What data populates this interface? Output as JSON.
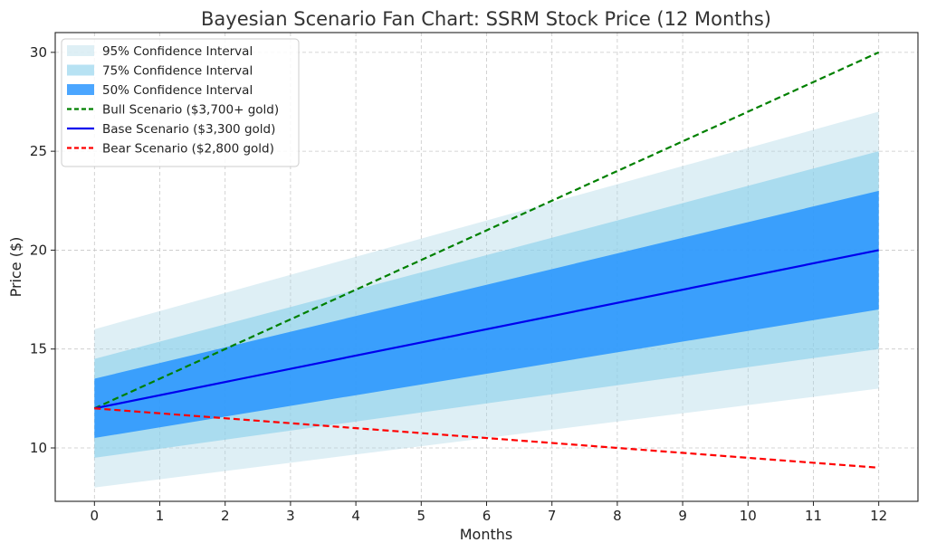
{
  "chart_data": {
    "type": "line",
    "title": "Bayesian Scenario Fan Chart: SSRM Stock Price (12 Months)",
    "xlabel": "Months",
    "ylabel": "Price ($)",
    "xlim": [
      -0.6,
      12.6
    ],
    "ylim": [
      7.3,
      31.0
    ],
    "x_ticks": [
      0,
      1,
      2,
      3,
      4,
      5,
      6,
      7,
      8,
      9,
      10,
      11,
      12
    ],
    "y_ticks": [
      10,
      15,
      20,
      25,
      30
    ],
    "grid": true,
    "legend_position": "top-left",
    "x": [
      0,
      12
    ],
    "bands": [
      {
        "name": "95% Confidence Interval",
        "lower": [
          8,
          13
        ],
        "upper": [
          16,
          27
        ],
        "color": "#add8e6",
        "opacity": 0.4
      },
      {
        "name": "75% Confidence Interval",
        "lower": [
          9.5,
          15
        ],
        "upper": [
          14.5,
          25
        ],
        "color": "#87ceeb",
        "opacity": 0.6
      },
      {
        "name": "50% Confidence Interval",
        "lower": [
          10.5,
          17
        ],
        "upper": [
          13.5,
          23
        ],
        "color": "#1e90ff",
        "opacity": 0.8
      }
    ],
    "series": [
      {
        "name": "Bull Scenario ($3,700+ gold)",
        "values": [
          12,
          30
        ],
        "color": "#008000",
        "dashed": true
      },
      {
        "name": "Base Scenario ($3,300 gold)",
        "values": [
          12,
          20
        ],
        "color": "#0000ee",
        "dashed": false
      },
      {
        "name": "Bear Scenario ($2,800 gold)",
        "values": [
          12,
          9
        ],
        "color": "#ff0000",
        "dashed": true
      }
    ]
  }
}
